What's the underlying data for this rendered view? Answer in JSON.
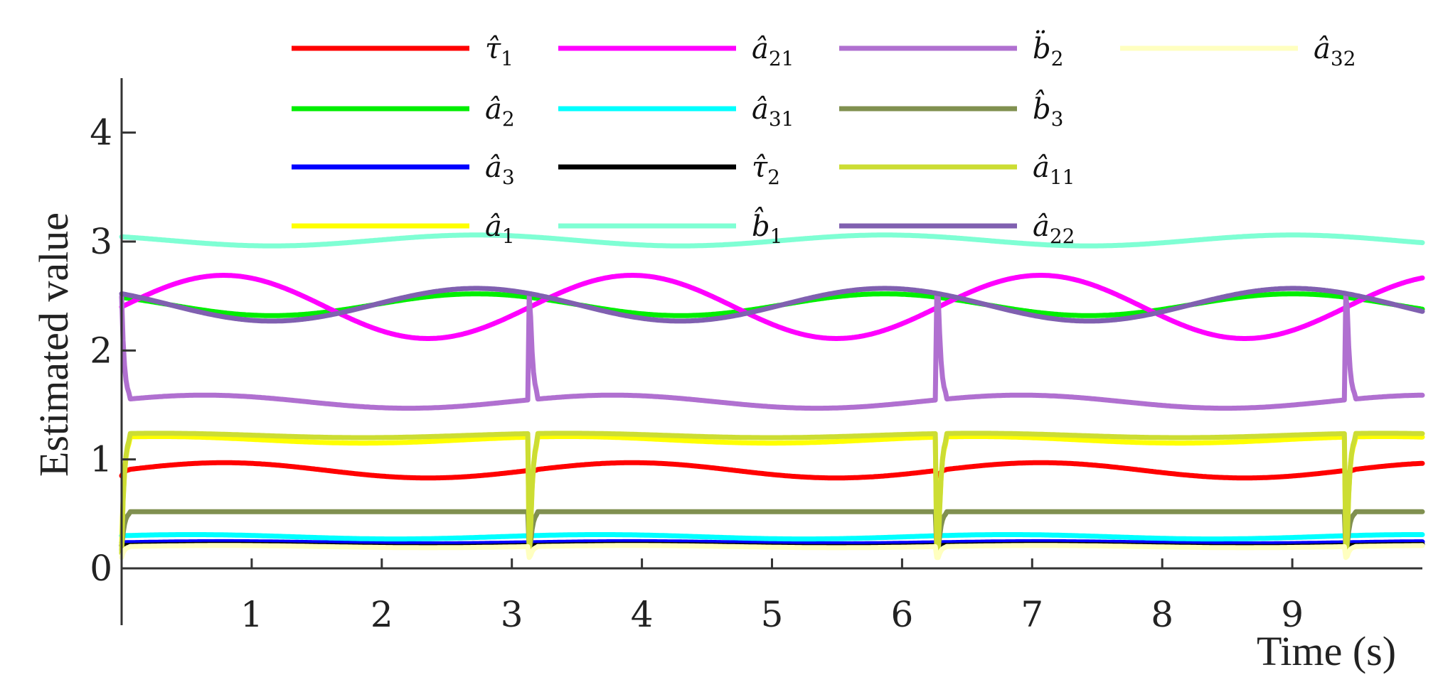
{
  "chart_data": {
    "type": "line",
    "xlabel": "Time (s)",
    "ylabel": "Estimated value",
    "xlim": [
      0,
      10
    ],
    "ylim": [
      0,
      4.5
    ],
    "xticks": [
      1,
      2,
      3,
      4,
      5,
      6,
      7,
      8,
      9
    ],
    "yticks": [
      0,
      1,
      2,
      3,
      4
    ],
    "grid": false,
    "legend_position": "top",
    "legend_columns": 4,
    "spike_times": [
      0,
      3.14,
      6.28,
      9.42
    ],
    "series": [
      {
        "name": "τ̂",
        "sub": "1",
        "color": "#ff0000",
        "mean": 0.9,
        "amp": 0.07,
        "period": 3.14,
        "phase": 0.0,
        "spike": -0.05
      },
      {
        "name": "â",
        "sub": "2",
        "color": "#00ee00",
        "mean": 2.42,
        "amp": 0.1,
        "period": 3.14,
        "phase": 2.4,
        "spike": 0.0
      },
      {
        "name": "â",
        "sub": "3",
        "color": "#0000ff",
        "mean": 0.235,
        "amp": 0.01,
        "period": 3.14,
        "phase": 0.0,
        "spike": 0.0
      },
      {
        "name": "â",
        "sub": "1",
        "color": "#ffff00",
        "mean": 1.18,
        "amp": 0.03,
        "period": 3.14,
        "phase": 1.0,
        "spike": -1.0
      },
      {
        "name": "â",
        "sub": "21",
        "color": "#ff00ff",
        "mean": 2.4,
        "amp": 0.29,
        "period": 3.14,
        "phase": 0.0,
        "spike": 0.0
      },
      {
        "name": "â",
        "sub": "31",
        "color": "#00ffff",
        "mean": 0.29,
        "amp": 0.02,
        "period": 3.14,
        "phase": 0.5,
        "spike": 0.0
      },
      {
        "name": "τ̂",
        "sub": "2",
        "color": "#000000",
        "mean": 0.21,
        "amp": 0.01,
        "period": 3.14,
        "phase": 0.0,
        "spike": 0.0
      },
      {
        "name": "b̂",
        "sub": "1",
        "color": "#7fffd4",
        "mean": 3.01,
        "amp": 0.05,
        "period": 3.14,
        "phase": 2.4,
        "spike": 0.0
      },
      {
        "name": "b̈",
        "sub": "2",
        "color": "#b070d0",
        "mean": 1.53,
        "amp": 0.06,
        "period": 3.14,
        "phase": 0.3,
        "spike": 0.95
      },
      {
        "name": "b̂",
        "sub": "3",
        "color": "#809050",
        "mean": 0.52,
        "amp": 0.0,
        "period": 3.14,
        "phase": 0.0,
        "spike": -0.35
      },
      {
        "name": "â",
        "sub": "11",
        "color": "#ccdd33",
        "mean": 1.22,
        "amp": 0.02,
        "period": 3.14,
        "phase": 1.0,
        "spike": -1.1
      },
      {
        "name": "â",
        "sub": "22",
        "color": "#8060b0",
        "mean": 2.42,
        "amp": 0.15,
        "period": 3.14,
        "phase": 2.4,
        "spike": 0.0
      },
      {
        "name": "â",
        "sub": "32",
        "color": "#ffffc0",
        "mean": 0.2,
        "amp": 0.01,
        "period": 3.14,
        "phase": 0.0,
        "spike": -0.1
      }
    ]
  }
}
